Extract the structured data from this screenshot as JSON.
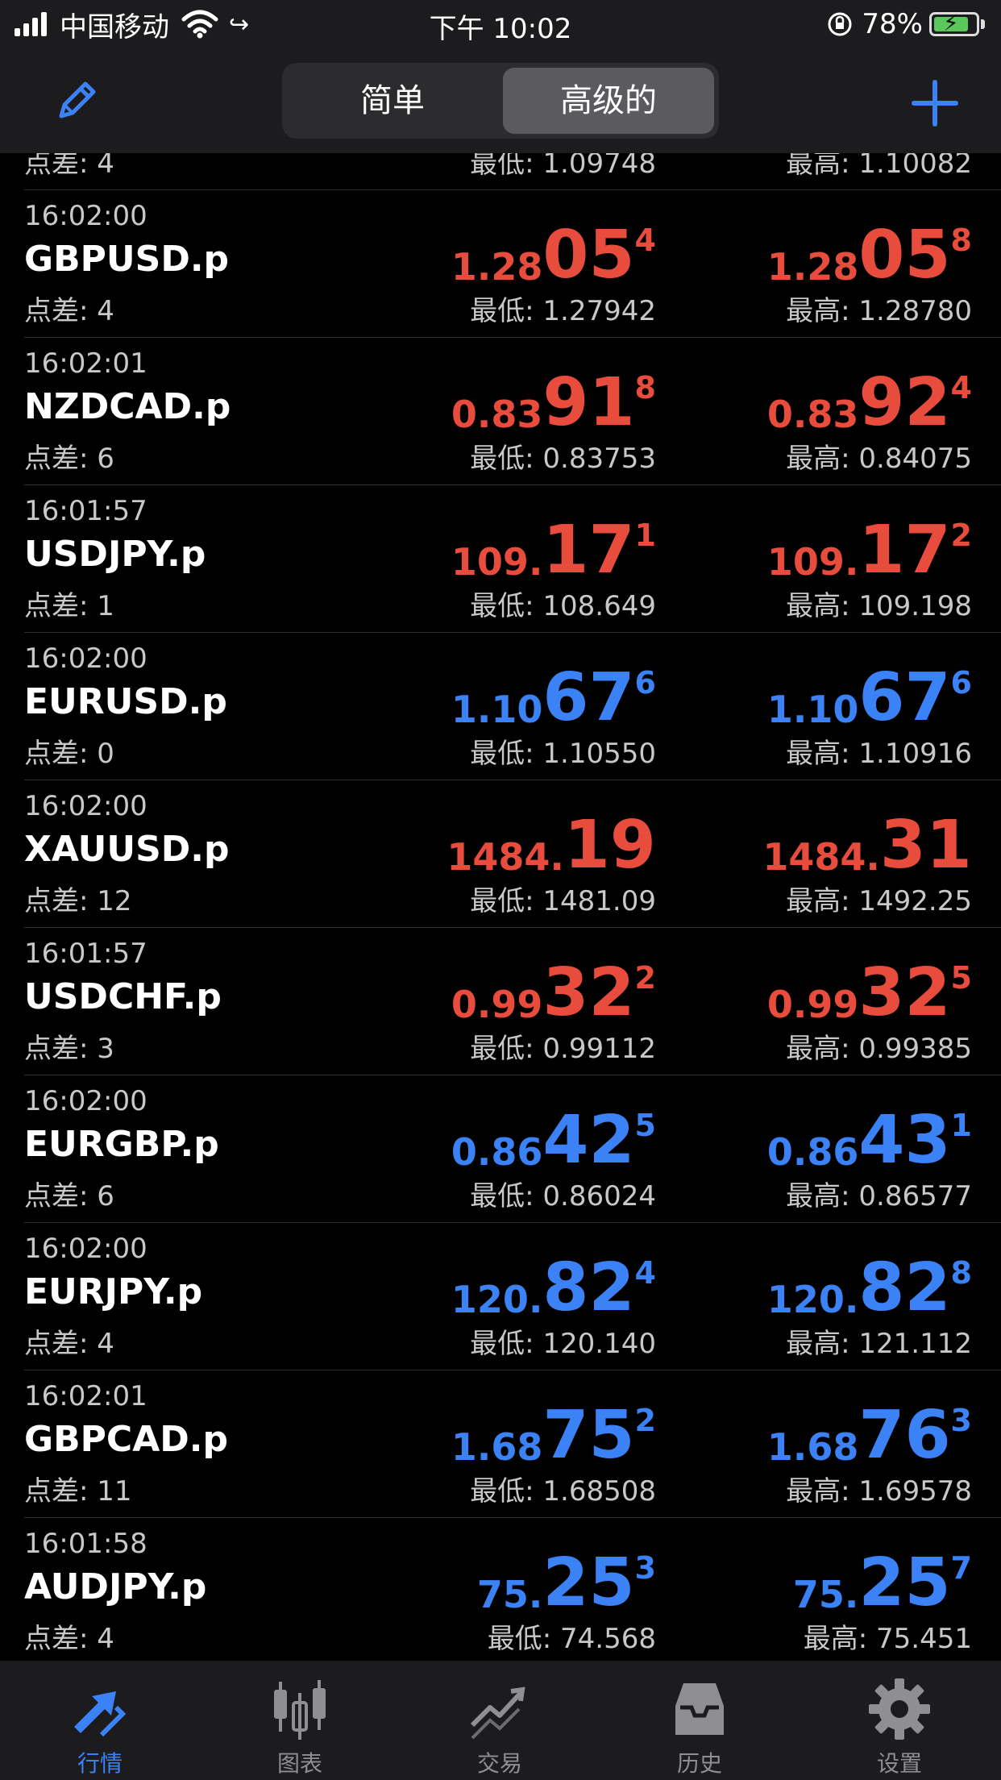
{
  "status": {
    "carrier": "中国移动",
    "time": "下午 10:02",
    "battery": "78%"
  },
  "nav": {
    "segments": [
      "简单",
      "高级的"
    ],
    "selected": "高级的"
  },
  "colors": {
    "down": "#e74c3c",
    "up": "#3b82f6",
    "accent": "#3b82f6"
  },
  "quotes": [
    {
      "partial": true,
      "spread": "点差: 4",
      "low": "最低: 1.09748",
      "high": "最高: 1.10082"
    },
    {
      "time": "16:02:00",
      "symbol": "GBPUSD.p",
      "spread": "点差: 4",
      "dir": "down",
      "bid": {
        "small": "1.28",
        "big": "05",
        "sup": "4"
      },
      "ask": {
        "small": "1.28",
        "big": "05",
        "sup": "8"
      },
      "low": "最低: 1.27942",
      "high": "最高: 1.28780"
    },
    {
      "time": "16:02:01",
      "symbol": "NZDCAD.p",
      "spread": "点差: 6",
      "dir": "down",
      "bid": {
        "small": "0.83",
        "big": "91",
        "sup": "8"
      },
      "ask": {
        "small": "0.83",
        "big": "92",
        "sup": "4"
      },
      "low": "最低: 0.83753",
      "high": "最高: 0.84075"
    },
    {
      "time": "16:01:57",
      "symbol": "USDJPY.p",
      "spread": "点差: 1",
      "dir": "down",
      "bid": {
        "small": "109.",
        "big": "17",
        "sup": "1"
      },
      "ask": {
        "small": "109.",
        "big": "17",
        "sup": "2"
      },
      "low": "最低: 108.649",
      "high": "最高: 109.198"
    },
    {
      "time": "16:02:00",
      "symbol": "EURUSD.p",
      "spread": "点差: 0",
      "dir": "up",
      "bid": {
        "small": "1.10",
        "big": "67",
        "sup": "6"
      },
      "ask": {
        "small": "1.10",
        "big": "67",
        "sup": "6"
      },
      "low": "最低: 1.10550",
      "high": "最高: 1.10916"
    },
    {
      "time": "16:02:00",
      "symbol": "XAUUSD.p",
      "spread": "点差: 12",
      "dir": "down",
      "bid": {
        "small": "1484.",
        "big": "19",
        "sup": ""
      },
      "ask": {
        "small": "1484.",
        "big": "31",
        "sup": ""
      },
      "low": "最低: 1481.09",
      "high": "最高: 1492.25"
    },
    {
      "time": "16:01:57",
      "symbol": "USDCHF.p",
      "spread": "点差: 3",
      "dir": "down",
      "bid": {
        "small": "0.99",
        "big": "32",
        "sup": "2"
      },
      "ask": {
        "small": "0.99",
        "big": "32",
        "sup": "5"
      },
      "low": "最低: 0.99112",
      "high": "最高: 0.99385"
    },
    {
      "time": "16:02:00",
      "symbol": "EURGBP.p",
      "spread": "点差: 6",
      "dir": "up",
      "bid": {
        "small": "0.86",
        "big": "42",
        "sup": "5"
      },
      "ask": {
        "small": "0.86",
        "big": "43",
        "sup": "1"
      },
      "low": "最低: 0.86024",
      "high": "最高: 0.86577"
    },
    {
      "time": "16:02:00",
      "symbol": "EURJPY.p",
      "spread": "点差: 4",
      "dir": "up",
      "bid": {
        "small": "120.",
        "big": "82",
        "sup": "4"
      },
      "ask": {
        "small": "120.",
        "big": "82",
        "sup": "8"
      },
      "low": "最低: 120.140",
      "high": "最高: 121.112"
    },
    {
      "time": "16:02:01",
      "symbol": "GBPCAD.p",
      "spread": "点差: 11",
      "dir": "up",
      "bid": {
        "small": "1.68",
        "big": "75",
        "sup": "2"
      },
      "ask": {
        "small": "1.68",
        "big": "76",
        "sup": "3"
      },
      "low": "最低: 1.68508",
      "high": "最高: 1.69578"
    },
    {
      "time": "16:01:58",
      "symbol": "AUDJPY.p",
      "spread": "点差: 4",
      "dir": "up",
      "bid": {
        "small": "75.",
        "big": "25",
        "sup": "3"
      },
      "ask": {
        "small": "75.",
        "big": "25",
        "sup": "7"
      },
      "low": "最低: 74.568",
      "high": "最高: 75.451"
    }
  ],
  "tabs": [
    {
      "label": "行情",
      "icon": "quotes-arrows-icon",
      "active": true
    },
    {
      "label": "图表",
      "icon": "candlestick-chart-icon",
      "active": false
    },
    {
      "label": "交易",
      "icon": "trade-chart-icon",
      "active": false
    },
    {
      "label": "历史",
      "icon": "history-inbox-icon",
      "active": false
    },
    {
      "label": "设置",
      "icon": "gear-icon",
      "active": false
    }
  ]
}
